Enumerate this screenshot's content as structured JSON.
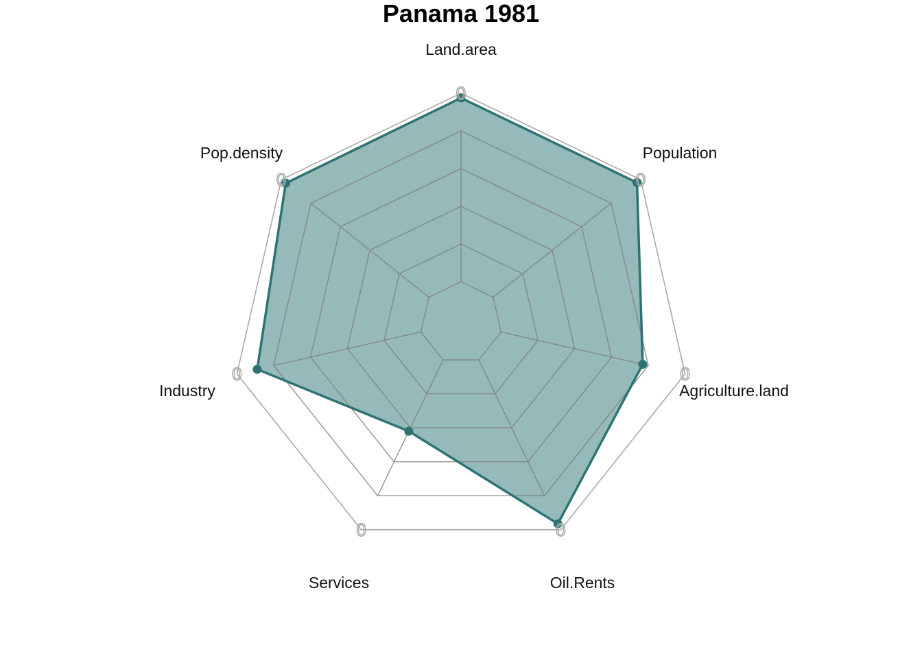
{
  "chart_data": {
    "type": "radar",
    "title": "Panama 1981",
    "axes": [
      "Land.area",
      "Population",
      "Agriculture.land",
      "Oil.Rents",
      "Services",
      "Industry",
      "Pop.density"
    ],
    "range": [
      0,
      1
    ],
    "tick_label": "0",
    "grid_levels": 6,
    "series": [
      {
        "values": [
          0.975,
          0.975,
          0.77,
          0.965,
          0.42,
          0.89,
          0.97
        ]
      }
    ],
    "colors": {
      "series_stroke": "#2e7373",
      "series_fill": "#2e7373",
      "series_fill_opacity": 0.5,
      "outer_ring": "#aaaaaa",
      "inner_grid": "#808080"
    }
  }
}
